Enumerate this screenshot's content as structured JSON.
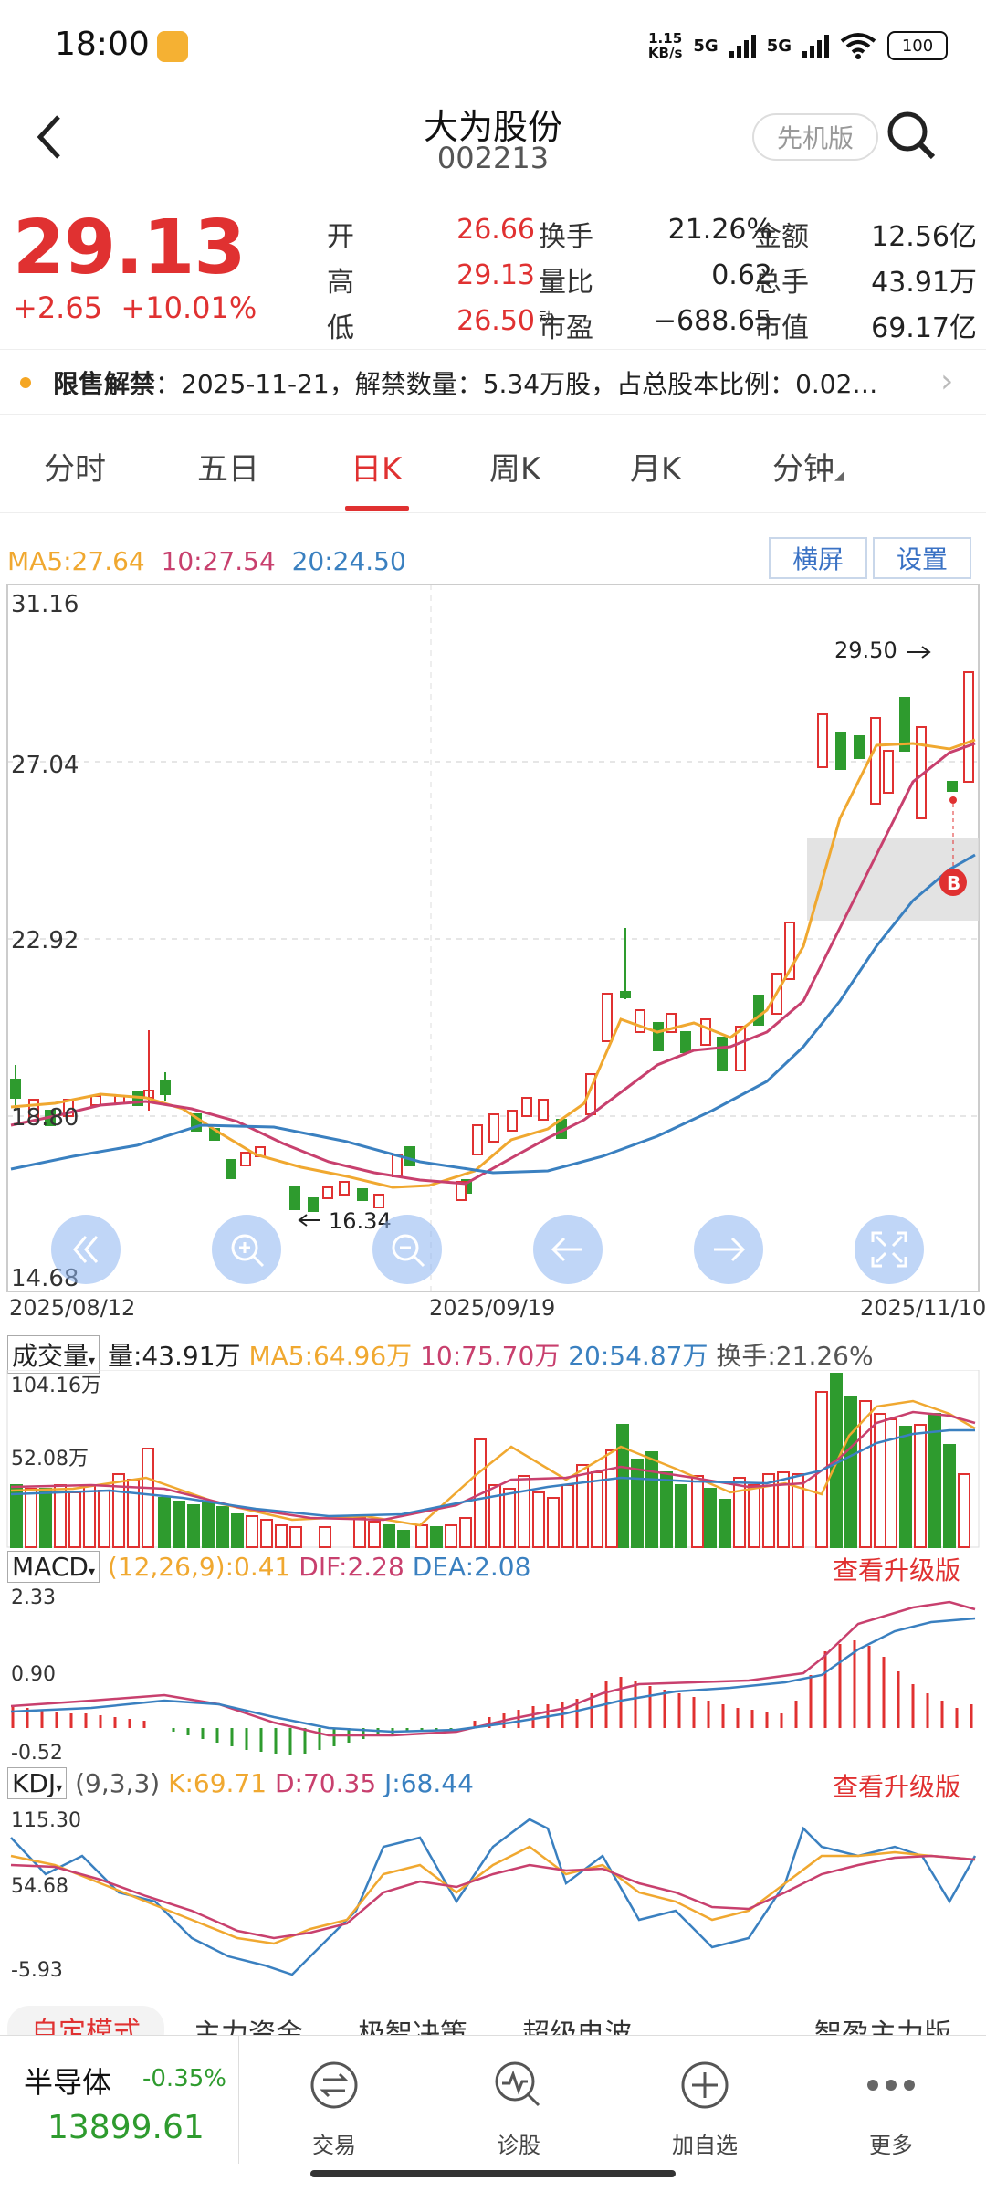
{
  "status": {
    "time": "18:00",
    "net_speed_top": "1.15",
    "net_speed_bottom": "KB/s",
    "sig1": "5G",
    "sig2": "5G",
    "battery": "100"
  },
  "header": {
    "name": "大为股份",
    "code": "002213",
    "early_btn": "先机版"
  },
  "quote": {
    "price": "29.13",
    "change": "+2.65",
    "change_pct": "+10.01%",
    "rows": [
      {
        "l1": "开",
        "v1": "26.66",
        "l2": "换手",
        "v2": "21.26%",
        "l3": "金额",
        "v3": "12.56亿"
      },
      {
        "l1": "高",
        "v1": "29.13",
        "l2": "量比",
        "v2": "0.62",
        "l3": "总手",
        "v3": "43.91万"
      },
      {
        "l1": "低",
        "v1": "26.50",
        "l2": "市盈",
        "l2sup": "动",
        "v2": "−688.65",
        "l3": "市值",
        "v3": "69.17亿"
      }
    ]
  },
  "notice": {
    "label": "限售解禁",
    "text": "：2025-11-21，解禁数量：5.34万股，占总股本比例：0.02…"
  },
  "tabs": [
    "分时",
    "五日",
    "日K",
    "周K",
    "月K",
    "分钟"
  ],
  "kline": {
    "ma_legend": {
      "ma5": "MA5:27.64",
      "ma10": "10:27.54",
      "ma20": "20:24.50"
    },
    "landscape_btn": "横屏",
    "settings_btn": "设置",
    "y_labels": [
      "31.16",
      "27.04",
      "22.92",
      "18.80",
      "14.68"
    ],
    "high_label": "29.50",
    "low_label": "16.34",
    "buy_marker": "B",
    "dates": [
      "2025/08/12",
      "2025/09/19",
      "2025/11/10"
    ]
  },
  "volume": {
    "title": "成交量",
    "total": "量:43.91万",
    "ma5": "MA5:64.96万",
    "ma10": "10:75.70万",
    "ma20": "20:54.87万",
    "turnover": "换手:21.26%",
    "y_labels": [
      "104.16万",
      "52.08万"
    ]
  },
  "macd": {
    "title": "MACD",
    "params": "(12,26,9):0.41",
    "dif": "DIF:2.28",
    "dea": "DEA:2.08",
    "upgrade": "查看升级版",
    "y_labels": [
      "2.33",
      "0.90",
      "-0.52"
    ]
  },
  "kdj": {
    "title": "KDJ",
    "params": "(9,3,3)",
    "k": "K:69.71",
    "d": "D:70.35",
    "j": "J:68.44",
    "upgrade": "查看升级版",
    "y_labels": [
      "115.30",
      "54.68",
      "-5.93"
    ]
  },
  "bottom_tabs": [
    "自定模式",
    "主力资金",
    "极智决策",
    "超级电波",
    "智盈主力版"
  ],
  "index": {
    "name": "半导体",
    "change": "-0.35%",
    "value": "13899.61"
  },
  "nav": [
    "交易",
    "诊股",
    "加自选",
    "更多"
  ],
  "colors": {
    "up": "#e03131",
    "down": "#2e9b2e",
    "ma5": "#f0a830",
    "ma10": "#c8406e",
    "ma20": "#3a80c0"
  }
}
